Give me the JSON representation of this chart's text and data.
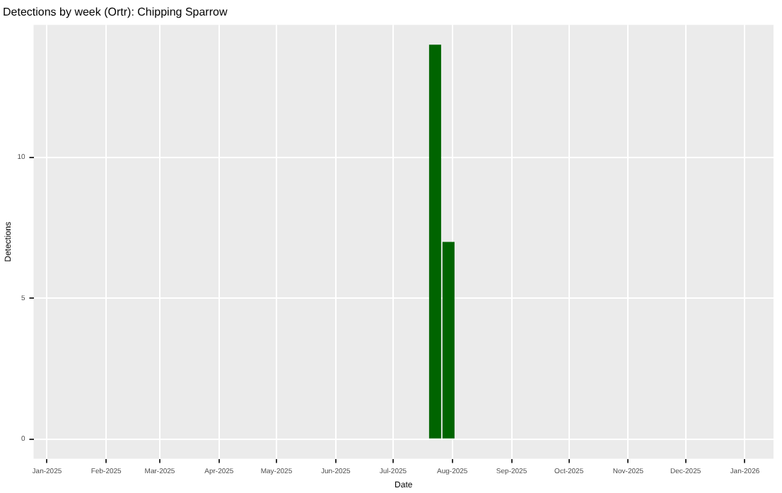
{
  "chart_data": {
    "type": "bar",
    "title": "Detections by week (Ortr): Chipping Sparrow",
    "xlabel": "Date",
    "ylabel": "Detections",
    "x": [
      "2025-07-23",
      "2025-07-30"
    ],
    "values": [
      14,
      7
    ],
    "color": "#006400",
    "xlim": [
      "2024-12-25",
      "2026-01-16"
    ],
    "ylim": [
      -0.7,
      14.7
    ],
    "xticks": [
      {
        "value": "2025-01-01",
        "label": "Jan-2025"
      },
      {
        "value": "2025-02-01",
        "label": "Feb-2025"
      },
      {
        "value": "2025-03-01",
        "label": "Mar-2025"
      },
      {
        "value": "2025-04-01",
        "label": "Apr-2025"
      },
      {
        "value": "2025-05-01",
        "label": "May-2025"
      },
      {
        "value": "2025-06-01",
        "label": "Jun-2025"
      },
      {
        "value": "2025-07-01",
        "label": "Jul-2025"
      },
      {
        "value": "2025-08-01",
        "label": "Aug-2025"
      },
      {
        "value": "2025-09-01",
        "label": "Sep-2025"
      },
      {
        "value": "2025-10-01",
        "label": "Oct-2025"
      },
      {
        "value": "2025-11-01",
        "label": "Nov-2025"
      },
      {
        "value": "2025-12-01",
        "label": "Dec-2025"
      },
      {
        "value": "2026-01-01",
        "label": "Jan-2026"
      }
    ],
    "yticks": [
      0,
      5,
      10
    ],
    "grid": true,
    "legend": false
  }
}
